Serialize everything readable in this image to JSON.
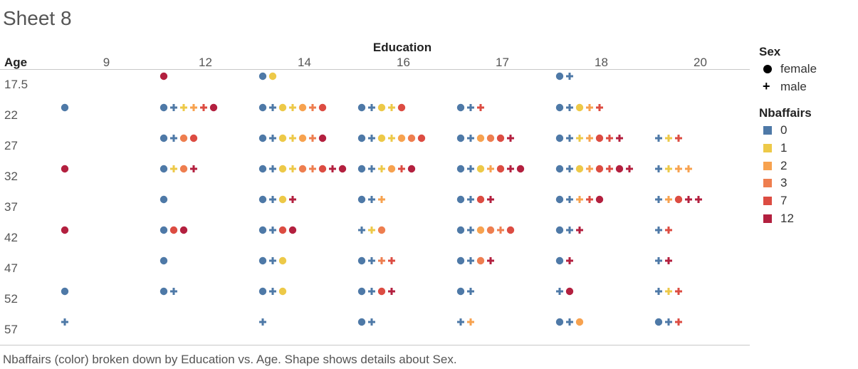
{
  "sheet": {
    "title": "Sheet 8"
  },
  "footer": "Nbaffairs (color) broken down by Education vs. Age.  Shape shows details about Sex.",
  "legend": {
    "sex_title": "Sex",
    "sex_items": [
      {
        "label": "female",
        "shape": "circle"
      },
      {
        "label": "male",
        "shape": "plus"
      }
    ],
    "color_title": "Nbaffairs",
    "color_items": [
      {
        "label": "0",
        "color": "#4e79a7"
      },
      {
        "label": "1",
        "color": "#edc948"
      },
      {
        "label": "2",
        "color": "#f7a24f"
      },
      {
        "label": "3",
        "color": "#ee7e4f"
      },
      {
        "label": "7",
        "color": "#dc4c42"
      },
      {
        "label": "12",
        "color": "#b3203f"
      }
    ]
  },
  "chart_data": {
    "type": "scatter",
    "title": "Sheet 8",
    "xlabel": "Education",
    "ylabel": "Age",
    "columns": [
      "9",
      "12",
      "14",
      "16",
      "17",
      "18",
      "20"
    ],
    "rows": [
      "17.5",
      "22",
      "27",
      "32",
      "37",
      "42",
      "47",
      "52",
      "57"
    ],
    "color_by": "Nbaffairs",
    "shape_by": "Sex",
    "shape_key": {
      "F": "female",
      "M": "male"
    },
    "color_key": {
      "0": "#4e79a7",
      "1": "#edc948",
      "2": "#f7a24f",
      "3": "#ee7e4f",
      "7": "#dc4c42",
      "12": "#b3203f"
    },
    "cells": [
      {
        "age": "17.5",
        "education": "12",
        "marks": [
          [
            "F",
            "12"
          ]
        ]
      },
      {
        "age": "17.5",
        "education": "14",
        "marks": [
          [
            "F",
            "0"
          ],
          [
            "F",
            "1"
          ]
        ]
      },
      {
        "age": "17.5",
        "education": "18",
        "marks": [
          [
            "F",
            "0"
          ],
          [
            "M",
            "0"
          ]
        ]
      },
      {
        "age": "22",
        "education": "9",
        "marks": [
          [
            "F",
            "0"
          ]
        ]
      },
      {
        "age": "22",
        "education": "12",
        "marks": [
          [
            "F",
            "0"
          ],
          [
            "M",
            "0"
          ],
          [
            "M",
            "1"
          ],
          [
            "M",
            "2"
          ],
          [
            "M",
            "7"
          ],
          [
            "F",
            "12"
          ]
        ]
      },
      {
        "age": "22",
        "education": "14",
        "marks": [
          [
            "F",
            "0"
          ],
          [
            "M",
            "0"
          ],
          [
            "F",
            "1"
          ],
          [
            "M",
            "1"
          ],
          [
            "F",
            "2"
          ],
          [
            "M",
            "3"
          ],
          [
            "F",
            "7"
          ]
        ]
      },
      {
        "age": "22",
        "education": "16",
        "marks": [
          [
            "F",
            "0"
          ],
          [
            "M",
            "0"
          ],
          [
            "F",
            "1"
          ],
          [
            "M",
            "1"
          ],
          [
            "F",
            "7"
          ]
        ]
      },
      {
        "age": "22",
        "education": "17",
        "marks": [
          [
            "F",
            "0"
          ],
          [
            "M",
            "0"
          ],
          [
            "M",
            "7"
          ]
        ]
      },
      {
        "age": "22",
        "education": "18",
        "marks": [
          [
            "F",
            "0"
          ],
          [
            "M",
            "0"
          ],
          [
            "F",
            "1"
          ],
          [
            "M",
            "2"
          ],
          [
            "M",
            "7"
          ]
        ]
      },
      {
        "age": "27",
        "education": "12",
        "marks": [
          [
            "F",
            "0"
          ],
          [
            "M",
            "0"
          ],
          [
            "F",
            "3"
          ],
          [
            "F",
            "7"
          ]
        ]
      },
      {
        "age": "27",
        "education": "14",
        "marks": [
          [
            "F",
            "0"
          ],
          [
            "M",
            "0"
          ],
          [
            "F",
            "1"
          ],
          [
            "M",
            "1"
          ],
          [
            "F",
            "2"
          ],
          [
            "M",
            "3"
          ],
          [
            "F",
            "12"
          ]
        ]
      },
      {
        "age": "27",
        "education": "16",
        "marks": [
          [
            "F",
            "0"
          ],
          [
            "M",
            "0"
          ],
          [
            "F",
            "1"
          ],
          [
            "M",
            "1"
          ],
          [
            "F",
            "2"
          ],
          [
            "F",
            "3"
          ],
          [
            "F",
            "7"
          ]
        ]
      },
      {
        "age": "27",
        "education": "17",
        "marks": [
          [
            "F",
            "0"
          ],
          [
            "M",
            "0"
          ],
          [
            "F",
            "2"
          ],
          [
            "F",
            "3"
          ],
          [
            "F",
            "7"
          ],
          [
            "M",
            "12"
          ]
        ]
      },
      {
        "age": "27",
        "education": "18",
        "marks": [
          [
            "F",
            "0"
          ],
          [
            "M",
            "0"
          ],
          [
            "M",
            "1"
          ],
          [
            "M",
            "2"
          ],
          [
            "F",
            "7"
          ],
          [
            "M",
            "7"
          ],
          [
            "M",
            "12"
          ]
        ]
      },
      {
        "age": "27",
        "education": "20",
        "marks": [
          [
            "M",
            "0"
          ],
          [
            "M",
            "1"
          ],
          [
            "M",
            "7"
          ]
        ]
      },
      {
        "age": "32",
        "education": "9",
        "marks": [
          [
            "F",
            "12"
          ]
        ]
      },
      {
        "age": "32",
        "education": "12",
        "marks": [
          [
            "F",
            "0"
          ],
          [
            "M",
            "1"
          ],
          [
            "F",
            "3"
          ],
          [
            "M",
            "12"
          ]
        ]
      },
      {
        "age": "32",
        "education": "14",
        "marks": [
          [
            "F",
            "0"
          ],
          [
            "M",
            "0"
          ],
          [
            "F",
            "1"
          ],
          [
            "M",
            "1"
          ],
          [
            "F",
            "3"
          ],
          [
            "M",
            "3"
          ],
          [
            "F",
            "7"
          ],
          [
            "M",
            "12"
          ],
          [
            "F",
            "12"
          ]
        ]
      },
      {
        "age": "32",
        "education": "16",
        "marks": [
          [
            "F",
            "0"
          ],
          [
            "M",
            "0"
          ],
          [
            "M",
            "1"
          ],
          [
            "F",
            "2"
          ],
          [
            "M",
            "7"
          ],
          [
            "F",
            "12"
          ]
        ]
      },
      {
        "age": "32",
        "education": "17",
        "marks": [
          [
            "F",
            "0"
          ],
          [
            "M",
            "0"
          ],
          [
            "F",
            "1"
          ],
          [
            "M",
            "2"
          ],
          [
            "F",
            "7"
          ],
          [
            "M",
            "12"
          ],
          [
            "F",
            "12"
          ]
        ]
      },
      {
        "age": "32",
        "education": "18",
        "marks": [
          [
            "F",
            "0"
          ],
          [
            "M",
            "0"
          ],
          [
            "F",
            "1"
          ],
          [
            "M",
            "2"
          ],
          [
            "F",
            "7"
          ],
          [
            "M",
            "7"
          ],
          [
            "F",
            "12"
          ],
          [
            "M",
            "12"
          ]
        ]
      },
      {
        "age": "32",
        "education": "20",
        "marks": [
          [
            "M",
            "0"
          ],
          [
            "M",
            "1"
          ],
          [
            "M",
            "2"
          ],
          [
            "M",
            "2"
          ]
        ]
      },
      {
        "age": "37",
        "education": "12",
        "marks": [
          [
            "F",
            "0"
          ]
        ]
      },
      {
        "age": "37",
        "education": "14",
        "marks": [
          [
            "F",
            "0"
          ],
          [
            "M",
            "0"
          ],
          [
            "F",
            "1"
          ],
          [
            "M",
            "12"
          ]
        ]
      },
      {
        "age": "37",
        "education": "16",
        "marks": [
          [
            "F",
            "0"
          ],
          [
            "M",
            "0"
          ],
          [
            "M",
            "2"
          ]
        ]
      },
      {
        "age": "37",
        "education": "17",
        "marks": [
          [
            "F",
            "0"
          ],
          [
            "M",
            "0"
          ],
          [
            "F",
            "7"
          ],
          [
            "M",
            "12"
          ]
        ]
      },
      {
        "age": "37",
        "education": "18",
        "marks": [
          [
            "F",
            "0"
          ],
          [
            "M",
            "0"
          ],
          [
            "M",
            "2"
          ],
          [
            "M",
            "7"
          ],
          [
            "F",
            "12"
          ]
        ]
      },
      {
        "age": "37",
        "education": "20",
        "marks": [
          [
            "M",
            "0"
          ],
          [
            "M",
            "2"
          ],
          [
            "F",
            "7"
          ],
          [
            "M",
            "12"
          ],
          [
            "M",
            "12"
          ]
        ]
      },
      {
        "age": "42",
        "education": "9",
        "marks": [
          [
            "F",
            "12"
          ]
        ]
      },
      {
        "age": "42",
        "education": "12",
        "marks": [
          [
            "F",
            "0"
          ],
          [
            "F",
            "7"
          ],
          [
            "F",
            "12"
          ]
        ]
      },
      {
        "age": "42",
        "education": "14",
        "marks": [
          [
            "F",
            "0"
          ],
          [
            "M",
            "0"
          ],
          [
            "F",
            "7"
          ],
          [
            "F",
            "12"
          ]
        ]
      },
      {
        "age": "42",
        "education": "16",
        "marks": [
          [
            "M",
            "0"
          ],
          [
            "M",
            "1"
          ],
          [
            "F",
            "3"
          ]
        ]
      },
      {
        "age": "42",
        "education": "17",
        "marks": [
          [
            "F",
            "0"
          ],
          [
            "M",
            "0"
          ],
          [
            "F",
            "2"
          ],
          [
            "F",
            "3"
          ],
          [
            "M",
            "3"
          ],
          [
            "F",
            "7"
          ]
        ]
      },
      {
        "age": "42",
        "education": "18",
        "marks": [
          [
            "F",
            "0"
          ],
          [
            "M",
            "0"
          ],
          [
            "M",
            "12"
          ]
        ]
      },
      {
        "age": "42",
        "education": "20",
        "marks": [
          [
            "M",
            "0"
          ],
          [
            "M",
            "7"
          ]
        ]
      },
      {
        "age": "47",
        "education": "12",
        "marks": [
          [
            "F",
            "0"
          ]
        ]
      },
      {
        "age": "47",
        "education": "14",
        "marks": [
          [
            "F",
            "0"
          ],
          [
            "M",
            "0"
          ],
          [
            "F",
            "1"
          ]
        ]
      },
      {
        "age": "47",
        "education": "16",
        "marks": [
          [
            "F",
            "0"
          ],
          [
            "M",
            "0"
          ],
          [
            "M",
            "3"
          ],
          [
            "M",
            "7"
          ]
        ]
      },
      {
        "age": "47",
        "education": "17",
        "marks": [
          [
            "F",
            "0"
          ],
          [
            "M",
            "0"
          ],
          [
            "F",
            "3"
          ],
          [
            "M",
            "12"
          ]
        ]
      },
      {
        "age": "47",
        "education": "18",
        "marks": [
          [
            "F",
            "0"
          ],
          [
            "M",
            "12"
          ]
        ]
      },
      {
        "age": "47",
        "education": "20",
        "marks": [
          [
            "M",
            "0"
          ],
          [
            "M",
            "12"
          ]
        ]
      },
      {
        "age": "52",
        "education": "9",
        "marks": [
          [
            "F",
            "0"
          ]
        ]
      },
      {
        "age": "52",
        "education": "12",
        "marks": [
          [
            "F",
            "0"
          ],
          [
            "M",
            "0"
          ]
        ]
      },
      {
        "age": "52",
        "education": "14",
        "marks": [
          [
            "F",
            "0"
          ],
          [
            "M",
            "0"
          ],
          [
            "F",
            "1"
          ]
        ]
      },
      {
        "age": "52",
        "education": "16",
        "marks": [
          [
            "F",
            "0"
          ],
          [
            "M",
            "0"
          ],
          [
            "F",
            "7"
          ],
          [
            "M",
            "12"
          ]
        ]
      },
      {
        "age": "52",
        "education": "17",
        "marks": [
          [
            "F",
            "0"
          ],
          [
            "M",
            "0"
          ]
        ]
      },
      {
        "age": "52",
        "education": "18",
        "marks": [
          [
            "M",
            "0"
          ],
          [
            "F",
            "12"
          ]
        ]
      },
      {
        "age": "52",
        "education": "20",
        "marks": [
          [
            "M",
            "0"
          ],
          [
            "M",
            "1"
          ],
          [
            "M",
            "7"
          ]
        ]
      },
      {
        "age": "57",
        "education": "9",
        "marks": [
          [
            "M",
            "0"
          ]
        ]
      },
      {
        "age": "57",
        "education": "14",
        "marks": [
          [
            "M",
            "0"
          ]
        ]
      },
      {
        "age": "57",
        "education": "16",
        "marks": [
          [
            "F",
            "0"
          ],
          [
            "M",
            "0"
          ]
        ]
      },
      {
        "age": "57",
        "education": "17",
        "marks": [
          [
            "M",
            "0"
          ],
          [
            "M",
            "2"
          ]
        ]
      },
      {
        "age": "57",
        "education": "18",
        "marks": [
          [
            "F",
            "0"
          ],
          [
            "M",
            "0"
          ],
          [
            "F",
            "2"
          ]
        ]
      },
      {
        "age": "57",
        "education": "20",
        "marks": [
          [
            "F",
            "0"
          ],
          [
            "M",
            "0"
          ],
          [
            "M",
            "7"
          ]
        ]
      }
    ]
  }
}
